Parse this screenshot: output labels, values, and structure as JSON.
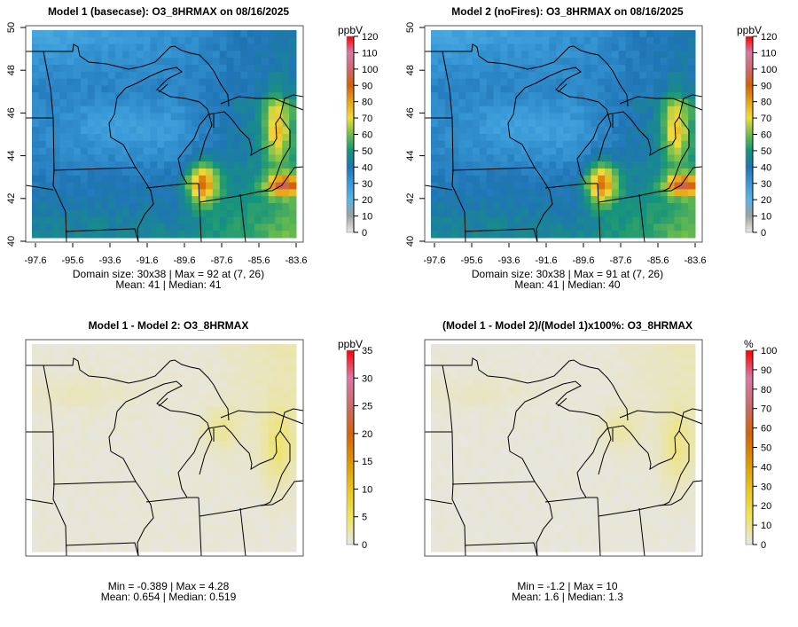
{
  "panels": [
    {
      "title": "Model 1 (basecase): O3_8HRMAX on 08/16/2025",
      "unit": "ppbV",
      "colorbar_ticks": [
        "0",
        "10",
        "20",
        "30",
        "40",
        "50",
        "60",
        "70",
        "80",
        "90",
        "100",
        "110",
        "120"
      ],
      "colorbar_max": 120,
      "x_ticks": [
        "-97.6",
        "-95.6",
        "-93.6",
        "-91.6",
        "-89.6",
        "-87.6",
        "-85.6",
        "-83.6"
      ],
      "y_ticks": [
        "40",
        "42",
        "44",
        "46",
        "48",
        "50"
      ],
      "footer_line1": "Domain size: 30x38 | Max = 92 at (7, 26)",
      "footer_line2": "Mean: 41 |  Median: 41"
    },
    {
      "title": "Model 2 (noFires): O3_8HRMAX on 08/16/2025",
      "unit": "ppbV",
      "colorbar_ticks": [
        "0",
        "10",
        "20",
        "30",
        "40",
        "50",
        "60",
        "70",
        "80",
        "90",
        "100",
        "110",
        "120"
      ],
      "colorbar_max": 120,
      "x_ticks": [
        "-97.6",
        "-95.6",
        "-93.6",
        "-91.6",
        "-89.6",
        "-87.6",
        "-85.6",
        "-83.6"
      ],
      "y_ticks": [
        "40",
        "42",
        "44",
        "46",
        "48",
        "50"
      ],
      "footer_line1": "Domain size: 30x38 | Max = 91 at (7, 26)",
      "footer_line2": "Mean: 41 |  Median: 40"
    },
    {
      "title": "Model 1 - Model 2: O3_8HRMAX",
      "unit": "ppbV",
      "colorbar_ticks": [
        "0",
        "5",
        "10",
        "15",
        "20",
        "25",
        "30",
        "35"
      ],
      "colorbar_max": 35,
      "x_ticks": [],
      "y_ticks": [],
      "footer_line1": "Min = -0.389 | Max = 4.28",
      "footer_line2": "Mean: 0.654 |  Median: 0.519"
    },
    {
      "title": "(Model 1 - Model 2)/(Model 1)x100%: O3_8HRMAX",
      "unit": "%",
      "colorbar_ticks": [
        "0",
        "10",
        "20",
        "30",
        "40",
        "50",
        "60",
        "70",
        "80",
        "90",
        "100"
      ],
      "colorbar_max": 100,
      "x_ticks": [],
      "y_ticks": [],
      "footer_line1": "Min = -1.2 | Max = 10",
      "footer_line2": "Mean: 1.6 |  Median: 1.3"
    }
  ],
  "colors": {
    "abs_scale": [
      "#e8e8e8",
      "#a0a0a0",
      "#5ab4e5",
      "#3a9ad8",
      "#1f74b4",
      "#16957a",
      "#6ebe4a",
      "#efdb3c",
      "#e8a318",
      "#d2600a",
      "#cc6a6a",
      "#d87aa6",
      "#ff0000"
    ],
    "diff_scale": [
      "#e6e6e6",
      "#f0e35a",
      "#e8c422",
      "#e09400",
      "#d2640a",
      "#cc6a6a",
      "#d87aa6",
      "#ff0000"
    ]
  }
}
